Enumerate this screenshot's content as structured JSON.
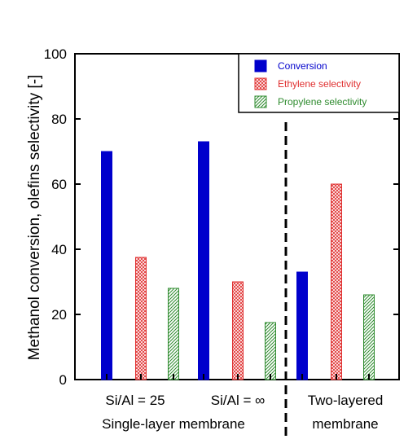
{
  "chart_data": {
    "type": "bar",
    "ylabel": "Methanol conversion, olefins selectivity [-]",
    "ylim": [
      0,
      100
    ],
    "yticks": [
      "0",
      "20",
      "40",
      "60",
      "80",
      "100"
    ],
    "grid": false,
    "legend_position": "top-right",
    "categories": [
      "Si/Al = 25",
      "Si/Al = ∞",
      "Two-layered membrane"
    ],
    "series": [
      {
        "name": "Conversion",
        "values": [
          70,
          73,
          33
        ],
        "color": "#0000cc",
        "pattern": "solid"
      },
      {
        "name": "Ethylene selectivity",
        "values": [
          37.5,
          30,
          60
        ],
        "color": "#e03030",
        "pattern": "crosshatch"
      },
      {
        "name": "Propylene selectivity",
        "values": [
          28,
          17.5,
          26
        ],
        "color": "#2e8b2e",
        "pattern": "diagonal"
      }
    ],
    "group_labels": {
      "left_a": "Si/Al = 25",
      "left_b": "Si/Al = ∞",
      "left_caption": "Single-layer membrane",
      "right_line1": "Two-layered",
      "right_line2": "membrane"
    }
  }
}
